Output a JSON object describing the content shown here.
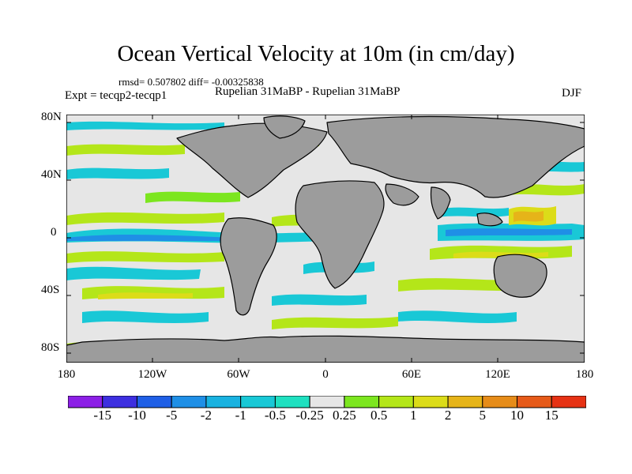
{
  "title": "Ocean Vertical Velocity at 10m (in cm/day)",
  "stats": "rmsd= 0.507802 diff= -0.00325838",
  "expt": "Expt = tecqp2-tecqp1",
  "subtitle": "Rupelian  31MaBP - Rupelian  31MaBP",
  "season": "DJF",
  "y_ticks": [
    "80N",
    "40N",
    "0",
    "40S",
    "80S"
  ],
  "x_ticks": [
    "180",
    "120W",
    "60W",
    "0",
    "60E",
    "120E",
    "180"
  ],
  "colorbar": {
    "labels": [
      "-15",
      "-10",
      "-5",
      "-2",
      "-1",
      "-0.5",
      "-0.25",
      "0.25",
      "0.5",
      "1",
      "2",
      "5",
      "10",
      "15"
    ],
    "colors": [
      "#8c1fe6",
      "#3d2fe0",
      "#1f5fe6",
      "#1f8fe6",
      "#19b2e0",
      "#19c8d6",
      "#1fe0c0",
      "#e6e6e6",
      "#7ce61f",
      "#b4e619",
      "#dcdc19",
      "#e6b419",
      "#e68c19",
      "#e65a19",
      "#e63214"
    ]
  },
  "colors": {
    "land": "#9c9c9c",
    "neutral": "#e6e6e6"
  }
}
